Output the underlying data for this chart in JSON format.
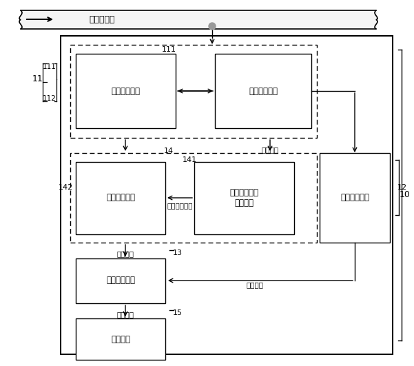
{
  "bg_color": "#ffffff",
  "gas_label": "可燃性气体",
  "labels": {
    "flow_measure": "流量计量模块",
    "property_detect": "物性检测模块",
    "flow_correct": "流量修正模块",
    "flow_coeff_get": "流量修正系数\n获取模块",
    "heat_calc": "热値计算单元",
    "energy_calc": "能量计算单元",
    "display": "显示模块"
  },
  "ref_labels": {
    "10": "10",
    "11": "11",
    "111": "111",
    "112": "112",
    "12": "12",
    "13": "13",
    "14": "14",
    "141": "141",
    "142": "142",
    "15": "15"
  },
  "annotations": {
    "property_signal": "物性信号",
    "flow_coeff": "流量修正系数",
    "flow_info": "流量信息",
    "heat_info": "热値信息",
    "energy_info": "能量信息"
  }
}
